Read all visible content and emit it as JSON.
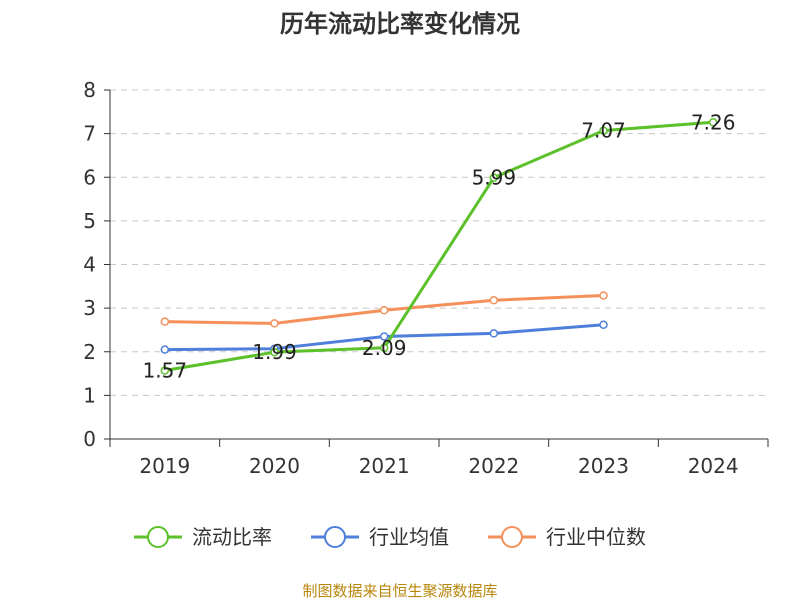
{
  "chart_data": {
    "type": "line",
    "title": "历年流动比率变化情况",
    "categories": [
      "2019",
      "2020",
      "2021",
      "2022",
      "2023",
      "2024"
    ],
    "ylim": [
      0,
      8
    ],
    "yticks": [
      "0",
      "1",
      "2",
      "3",
      "4",
      "5",
      "6",
      "7",
      "8"
    ],
    "grid": true,
    "legend_position": "bottom",
    "series": [
      {
        "name": "流动比率",
        "color": "#5cc02a",
        "values": [
          1.57,
          1.99,
          2.09,
          5.99,
          7.07,
          7.26
        ],
        "labels": [
          "1.57",
          "1.99",
          "2.09",
          "5.99",
          "7.07",
          "7.26"
        ]
      },
      {
        "name": "行业均值",
        "color": "#4e7fdb",
        "values": [
          2.05,
          2.07,
          2.35,
          2.42,
          2.62,
          null
        ]
      },
      {
        "name": "行业中位数",
        "color": "#f5905a",
        "values": [
          2.69,
          2.65,
          2.95,
          3.18,
          3.29,
          null
        ]
      }
    ],
    "source_note": "制图数据来自恒生聚源数据库"
  }
}
